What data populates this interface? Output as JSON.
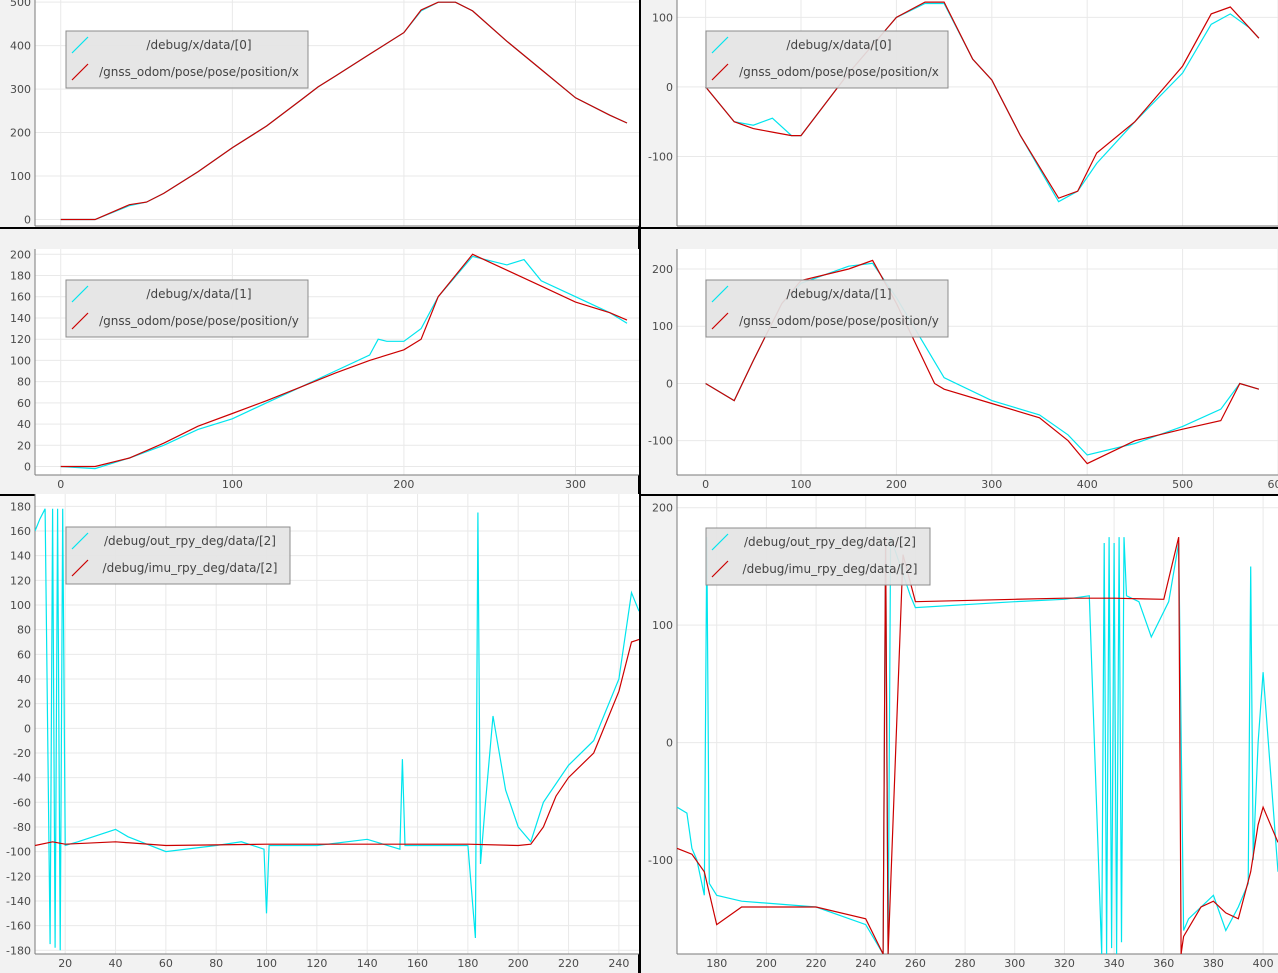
{
  "chart_data": [
    {
      "id": "p1",
      "type": "line",
      "xlim": [
        -15,
        337
      ],
      "ylim": [
        -15,
        505
      ],
      "xticks": [
        0,
        100,
        200,
        300
      ],
      "yticks": [
        0,
        100,
        200,
        300,
        400,
        500
      ],
      "legend_position": "top-left",
      "series": [
        {
          "name": "/debug/x/data/[0]",
          "color": "#00e5ee",
          "x": [
            0,
            20,
            40,
            50,
            60,
            80,
            100,
            120,
            140,
            150,
            160,
            180,
            200,
            210,
            220,
            230,
            240,
            260,
            280,
            300,
            320,
            330
          ],
          "y": [
            0,
            0,
            32,
            40,
            60,
            110,
            165,
            215,
            275,
            305,
            330,
            380,
            430,
            480,
            500,
            500,
            480,
            410,
            345,
            280,
            240,
            222
          ]
        },
        {
          "name": "/gnss_odom/pose/pose/position/x",
          "color": "#cc0000",
          "x": [
            0,
            20,
            40,
            50,
            60,
            80,
            100,
            120,
            140,
            150,
            160,
            180,
            200,
            210,
            220,
            230,
            240,
            260,
            280,
            300,
            320,
            330
          ],
          "y": [
            0,
            0,
            34,
            40,
            60,
            110,
            165,
            215,
            275,
            305,
            330,
            380,
            430,
            482,
            500,
            500,
            480,
            410,
            345,
            280,
            240,
            222
          ]
        }
      ]
    },
    {
      "id": "p2",
      "type": "line",
      "xlim": [
        -15,
        337
      ],
      "ylim": [
        -8,
        205
      ],
      "xticks": [
        0,
        100,
        200,
        300
      ],
      "yticks": [
        0,
        20,
        40,
        60,
        80,
        100,
        120,
        140,
        160,
        180,
        200
      ],
      "legend_position": "top-left",
      "series": [
        {
          "name": "/debug/x/data/[1]",
          "color": "#00e5ee",
          "x": [
            0,
            20,
            40,
            60,
            80,
            100,
            120,
            140,
            160,
            180,
            185,
            190,
            200,
            210,
            220,
            240,
            260,
            270,
            280,
            300,
            320,
            330
          ],
          "y": [
            0,
            -2,
            8,
            20,
            35,
            45,
            60,
            75,
            90,
            105,
            120,
            118,
            118,
            130,
            160,
            198,
            190,
            195,
            175,
            160,
            145,
            135
          ]
        },
        {
          "name": "/gnss_odom/pose/pose/position/y",
          "color": "#cc0000",
          "x": [
            0,
            20,
            40,
            60,
            80,
            100,
            120,
            140,
            160,
            180,
            200,
            210,
            220,
            240,
            260,
            280,
            300,
            320,
            330
          ],
          "y": [
            0,
            0,
            8,
            22,
            38,
            50,
            62,
            75,
            88,
            100,
            110,
            120,
            160,
            200,
            185,
            170,
            155,
            145,
            138
          ]
        }
      ]
    },
    {
      "id": "p3",
      "type": "line",
      "xlim": [
        -30,
        600
      ],
      "ylim": [
        -200,
        125
      ],
      "xticks": [
        0,
        100,
        200,
        300,
        400,
        500,
        600
      ],
      "yticks": [
        -100,
        0,
        100
      ],
      "legend_position": "top-left",
      "series": [
        {
          "name": "/debug/x/data/[0]",
          "color": "#00e5ee",
          "x": [
            0,
            30,
            50,
            70,
            90,
            100,
            150,
            200,
            230,
            250,
            280,
            300,
            330,
            370,
            390,
            410,
            450,
            500,
            530,
            550,
            570,
            580
          ],
          "y": [
            0,
            -50,
            -55,
            -45,
            -70,
            -70,
            20,
            100,
            120,
            120,
            40,
            10,
            -70,
            -165,
            -150,
            -110,
            -50,
            20,
            90,
            105,
            85,
            70
          ]
        },
        {
          "name": "/gnss_odom/pose/pose/position/x",
          "color": "#cc0000",
          "x": [
            0,
            30,
            50,
            70,
            90,
            100,
            150,
            200,
            230,
            250,
            280,
            300,
            330,
            370,
            390,
            410,
            450,
            500,
            530,
            550,
            570,
            580
          ],
          "y": [
            0,
            -50,
            -60,
            -65,
            -70,
            -70,
            20,
            100,
            122,
            122,
            40,
            10,
            -70,
            -160,
            -150,
            -95,
            -50,
            30,
            105,
            115,
            85,
            70
          ]
        }
      ]
    },
    {
      "id": "p4",
      "type": "line",
      "xlim": [
        -30,
        600
      ],
      "ylim": [
        -160,
        235
      ],
      "xticks": [
        0,
        100,
        200,
        300,
        400,
        500,
        600
      ],
      "yticks": [
        -100,
        0,
        100,
        200
      ],
      "legend_position": "top-left",
      "series": [
        {
          "name": "/debug/x/data/[1]",
          "color": "#00e5ee",
          "x": [
            0,
            30,
            50,
            80,
            100,
            150,
            175,
            200,
            250,
            300,
            350,
            380,
            400,
            450,
            500,
            540,
            560,
            580
          ],
          "y": [
            0,
            -30,
            40,
            140,
            175,
            205,
            210,
            150,
            10,
            -30,
            -55,
            -90,
            -125,
            -105,
            -75,
            -45,
            0,
            -10
          ]
        },
        {
          "name": "/gnss_odom/pose/pose/position/y",
          "color": "#cc0000",
          "x": [
            0,
            30,
            50,
            80,
            100,
            150,
            175,
            200,
            240,
            250,
            300,
            350,
            380,
            400,
            450,
            500,
            540,
            560,
            580
          ],
          "y": [
            0,
            -30,
            40,
            140,
            180,
            200,
            215,
            140,
            0,
            -10,
            -35,
            -60,
            -100,
            -140,
            -100,
            -80,
            -65,
            0,
            -10
          ]
        }
      ]
    },
    {
      "id": "p5",
      "type": "line",
      "xlim": [
        8,
        248
      ],
      "ylim": [
        -183,
        190
      ],
      "xticks": [
        20,
        40,
        60,
        80,
        100,
        120,
        140,
        160,
        180,
        200,
        220,
        240
      ],
      "yticks": [
        -180,
        -160,
        -140,
        -120,
        -100,
        -80,
        -60,
        -40,
        -20,
        0,
        20,
        40,
        60,
        80,
        100,
        120,
        140,
        160,
        180
      ],
      "legend_position": "top-left",
      "series": [
        {
          "name": "/debug/out_rpy_deg/data/[2]",
          "color": "#00e5ee",
          "x": [
            8,
            10,
            12,
            14,
            15,
            16,
            17,
            18,
            19,
            20,
            25,
            40,
            45,
            60,
            80,
            90,
            99,
            100,
            101,
            120,
            140,
            153,
            154,
            155,
            180,
            183,
            184,
            185,
            187,
            190,
            195,
            200,
            205,
            210,
            220,
            230,
            240,
            245,
            248
          ],
          "y": [
            160,
            170,
            178,
            -175,
            178,
            -178,
            178,
            -180,
            178,
            -95,
            -92,
            -82,
            -88,
            -100,
            -95,
            -92,
            -98,
            -150,
            -95,
            -95,
            -90,
            -98,
            -25,
            -95,
            -95,
            -170,
            175,
            -110,
            -60,
            10,
            -50,
            -80,
            -92,
            -60,
            -30,
            -10,
            40,
            110,
            95
          ]
        },
        {
          "name": "/debug/imu_rpy_deg/data/[2]",
          "color": "#cc0000",
          "x": [
            8,
            15,
            20,
            40,
            60,
            100,
            140,
            180,
            200,
            205,
            210,
            215,
            220,
            230,
            240,
            245,
            248
          ],
          "y": [
            -95,
            -92,
            -94,
            -92,
            -95,
            -94,
            -94,
            -94,
            -95,
            -94,
            -80,
            -55,
            -40,
            -20,
            30,
            70,
            72
          ]
        }
      ]
    },
    {
      "id": "p6",
      "type": "line",
      "xlim": [
        164,
        406
      ],
      "ylim": [
        -180,
        210
      ],
      "xticks": [
        180,
        200,
        220,
        240,
        260,
        280,
        300,
        320,
        340,
        360,
        380,
        400
      ],
      "yticks": [
        -100,
        0,
        100,
        200
      ],
      "legend_position": "top-left",
      "series": [
        {
          "name": "/debug/out_rpy_deg/data/[2]",
          "color": "#00e5ee",
          "x": [
            164,
            168,
            170,
            172,
            175,
            176,
            177,
            180,
            190,
            220,
            240,
            247,
            248,
            249,
            250,
            258,
            260,
            300,
            320,
            330,
            335,
            336,
            337,
            338,
            339,
            340,
            341,
            342,
            343,
            344,
            345,
            350,
            355,
            362,
            366,
            368,
            370,
            380,
            385,
            390,
            394,
            395,
            396,
            398,
            400,
            406
          ],
          "y": [
            -55,
            -60,
            -90,
            -100,
            -130,
            175,
            -120,
            -130,
            -135,
            -140,
            -155,
            -180,
            175,
            -180,
            175,
            125,
            115,
            120,
            122,
            125,
            -180,
            170,
            -180,
            175,
            -175,
            170,
            -180,
            175,
            -170,
            175,
            125,
            120,
            90,
            120,
            170,
            -160,
            -150,
            -130,
            -160,
            -140,
            -120,
            150,
            -100,
            0,
            60,
            -110
          ]
        },
        {
          "name": "/debug/imu_rpy_deg/data/[2]",
          "color": "#cc0000",
          "x": [
            164,
            170,
            175,
            180,
            190,
            220,
            240,
            247,
            248,
            249,
            255,
            260,
            300,
            320,
            340,
            360,
            366,
            367,
            368,
            375,
            380,
            385,
            390,
            395,
            398,
            400,
            406
          ],
          "y": [
            -90,
            -95,
            -110,
            -155,
            -140,
            -140,
            -150,
            -180,
            175,
            -180,
            160,
            120,
            122,
            123,
            123,
            122,
            175,
            -180,
            -165,
            -140,
            -135,
            -145,
            -150,
            -110,
            -70,
            -55,
            -85
          ]
        }
      ]
    }
  ]
}
